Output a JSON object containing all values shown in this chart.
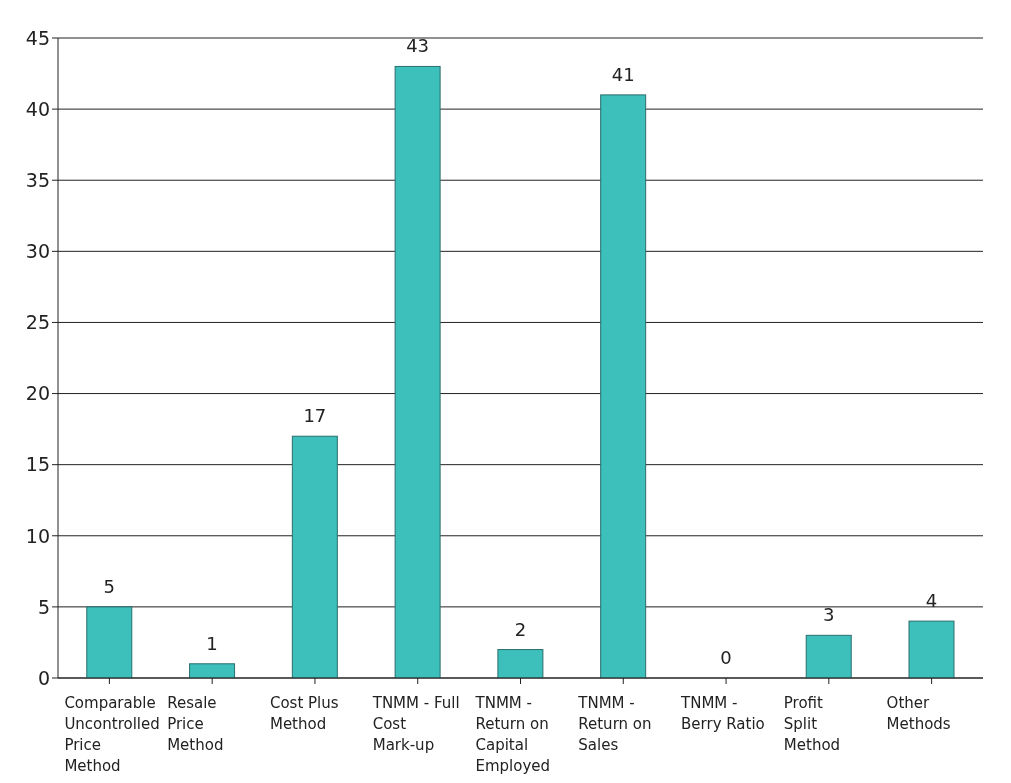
{
  "chart_data": {
    "type": "bar",
    "categories": [
      "Comparable Uncontrolled Price Method",
      "Resale Price Method",
      "Cost Plus Method",
      "TNMM - Full Cost Mark-up",
      "TNMM - Return on Capital Employed",
      "TNMM - Return on Sales",
      "TNMM - Berry Ratio",
      "Profit Split Method",
      "Other Methods"
    ],
    "values": [
      5,
      1,
      17,
      43,
      2,
      41,
      0,
      3,
      4
    ],
    "color": "#3dbfbc",
    "ylim": [
      0,
      45
    ],
    "yticks": [
      0,
      5,
      10,
      15,
      20,
      25,
      30,
      35,
      40,
      45
    ],
    "grid": "y",
    "data_labels": true
  }
}
